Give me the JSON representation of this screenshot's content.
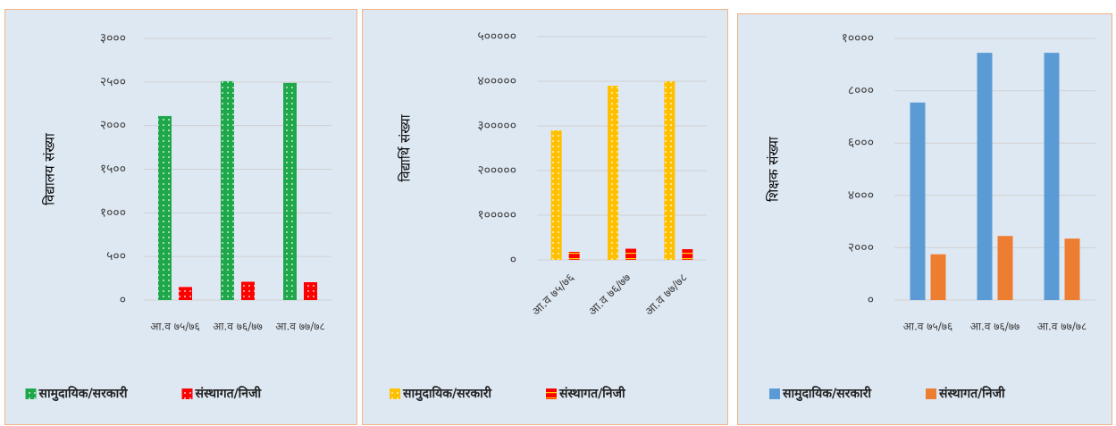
{
  "chart_data": [
    {
      "type": "bar",
      "ylabel": "विद्यालय संख्या",
      "categories": [
        "आ.व ७५/७६",
        "आ.व ७६/७७",
        "आ.व ७७/७८"
      ],
      "series": [
        {
          "name": "सामुदायिक/सरकारी",
          "color": "#1fa84a",
          "pattern": "dots",
          "values": [
            2110,
            2510,
            2490
          ]
        },
        {
          "name": "संस्थागत/निजी",
          "color": "#ff0000",
          "pattern": "dots",
          "values": [
            150,
            210,
            205
          ]
        }
      ],
      "ylim": [
        0,
        3000
      ],
      "yticks": [
        {
          "value": 0,
          "label": "०"
        },
        {
          "value": 500,
          "label": "५००"
        },
        {
          "value": 1000,
          "label": "१०००"
        },
        {
          "value": 1500,
          "label": "१५००"
        },
        {
          "value": 2000,
          "label": "२०००"
        },
        {
          "value": 2500,
          "label": "२५००"
        },
        {
          "value": 3000,
          "label": "३०००"
        }
      ],
      "grid": true
    },
    {
      "type": "bar",
      "ylabel": "विद्यार्थि संख्या",
      "categories": [
        "आ.व ७५/७६",
        "आ.व ७६/७७",
        "आ.व ७७/७८"
      ],
      "series": [
        {
          "name": "सामुदायिक/सरकारी",
          "color": "#ffc000",
          "pattern": "dots",
          "values": [
            290000,
            390000,
            400000
          ]
        },
        {
          "name": "संस्थागत/निजी",
          "color": "#ff0000",
          "pattern": "lines",
          "values": [
            18000,
            25000,
            24000
          ]
        }
      ],
      "ylim": [
        0,
        500000
      ],
      "yticks": [
        {
          "value": 0,
          "label": "०"
        },
        {
          "value": 100000,
          "label": "१०००००"
        },
        {
          "value": 200000,
          "label": "२०००००"
        },
        {
          "value": 300000,
          "label": "३०००००"
        },
        {
          "value": 400000,
          "label": "४०००००"
        },
        {
          "value": 500000,
          "label": "५०००००"
        }
      ],
      "grid": true
    },
    {
      "type": "bar",
      "ylabel": "शिक्षक संख्या",
      "categories": [
        "आ.व ७५/७६",
        "आ.व ७६/७७",
        "आ.व ७७/७८"
      ],
      "series": [
        {
          "name": "सामुदायिक/सरकारी",
          "color": "#5b9bd5",
          "values": [
            7550,
            9450,
            9450
          ]
        },
        {
          "name": "संस्थागत/निजी",
          "color": "#ed7d31",
          "values": [
            1750,
            2450,
            2350
          ]
        }
      ],
      "ylim": [
        0,
        10000
      ],
      "yticks": [
        {
          "value": 0,
          "label": "०"
        },
        {
          "value": 2000,
          "label": "२०००"
        },
        {
          "value": 4000,
          "label": "४०००"
        },
        {
          "value": 6000,
          "label": "६०००"
        },
        {
          "value": 8000,
          "label": "८०००"
        },
        {
          "value": 10000,
          "label": "१००००"
        }
      ],
      "grid": true
    }
  ]
}
